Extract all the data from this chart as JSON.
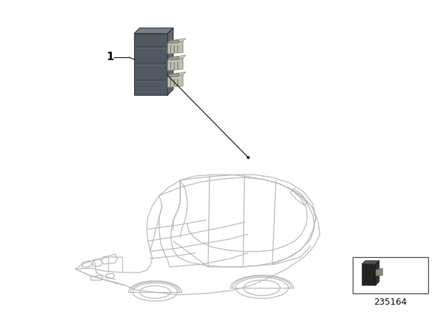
{
  "bg_color": "#ffffff",
  "car_color": "#b8b8b8",
  "car_lw": 0.9,
  "label_number": "1",
  "part_number": "235164",
  "unit_face_color": "#4a5058",
  "unit_top_color": "#6a7078",
  "unit_right_color": "#58606a",
  "conn_color": "#c8c8b8",
  "conn_dark": "#989888"
}
